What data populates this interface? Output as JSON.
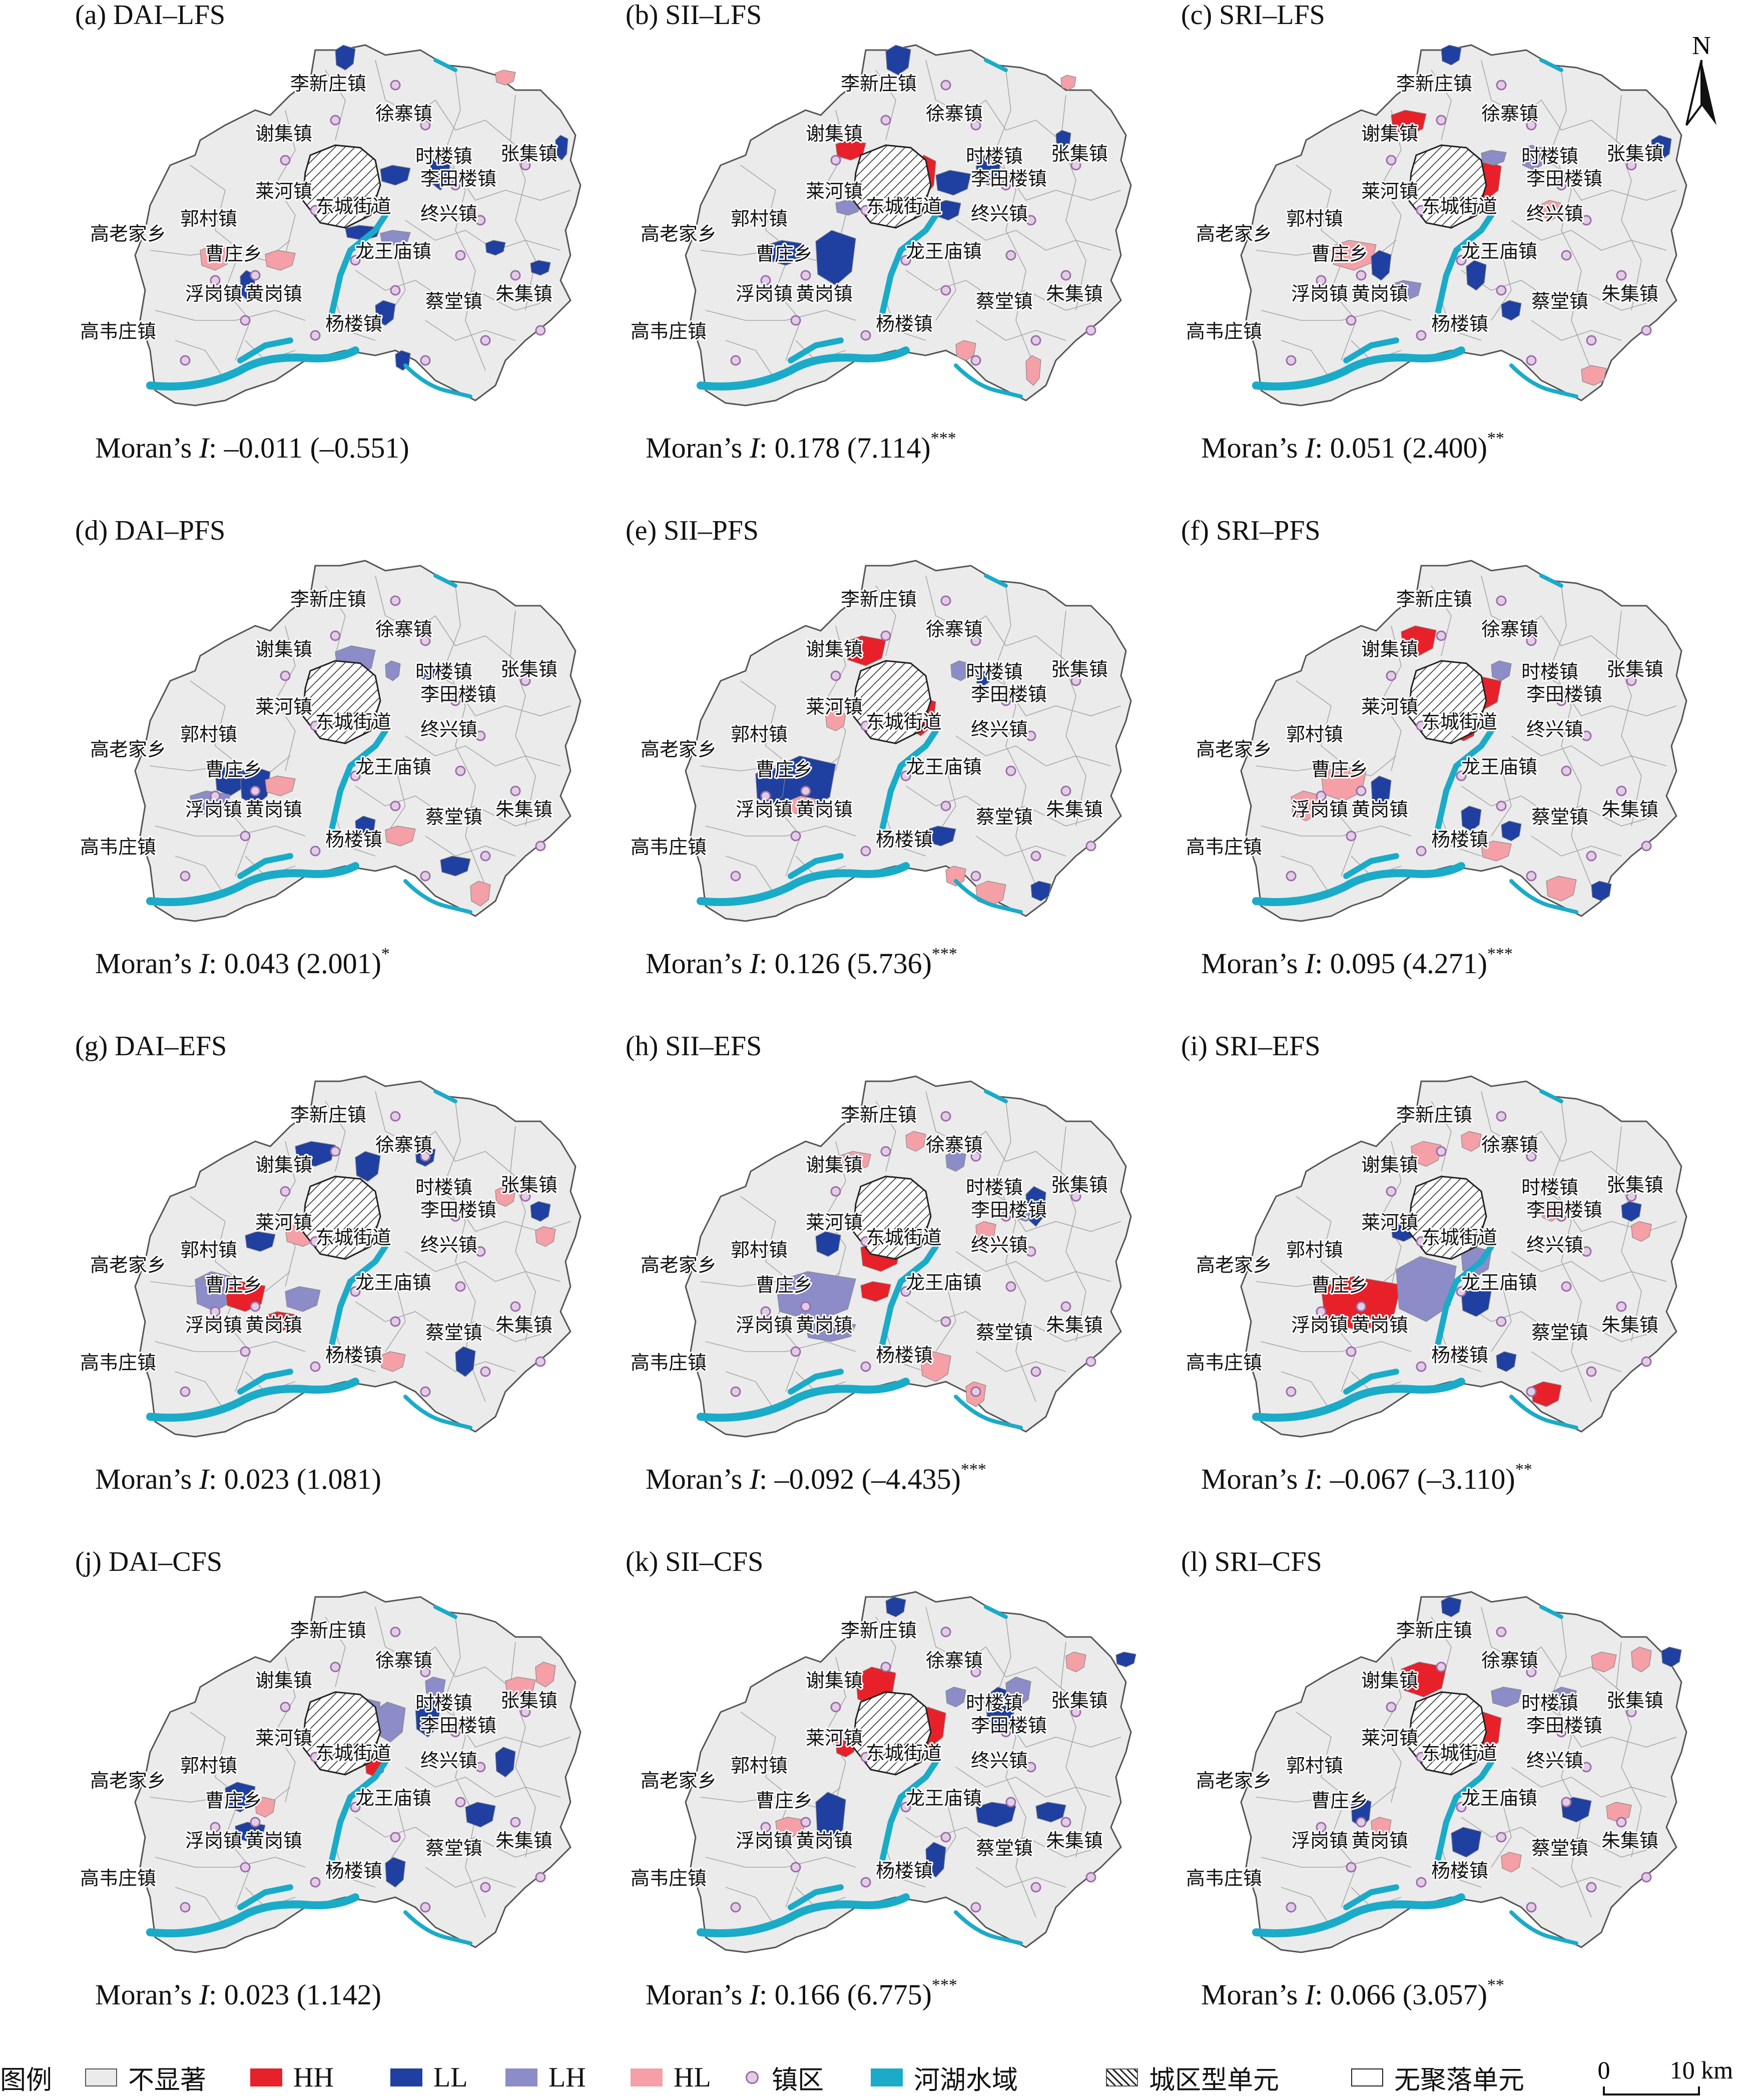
{
  "colors": {
    "not_significant": "#ebebeb",
    "HH": "#e8202a",
    "LL": "#1f40a0",
    "LH": "#8c8cc8",
    "HL": "#f4a0a6",
    "township_dot": "#e3cde6",
    "water": "#1aabc9",
    "boundary": "#666666"
  },
  "north_arrow": {
    "label": "N"
  },
  "town_names": {
    "lixinzhuang": "李新庄镇",
    "xuzhai": "徐寨镇",
    "xieji": "谢集镇",
    "shilou": "时楼镇",
    "zhangji": "张集镇",
    "litianlou": "李田楼镇",
    "laihe": "莱河镇",
    "dongcheng": "东城街道",
    "zhongxing": "终兴镇",
    "gaolaojia": "高老家乡",
    "guocun": "郭村镇",
    "caozhuang": "曹庄乡",
    "longwangmiao": "龙王庙镇",
    "fugang": "浮岗镇",
    "huanggang": "黄岗镇",
    "zhuji": "朱集镇",
    "caitang": "蔡堂镇",
    "yanglou": "杨楼镇",
    "gaoweizhuang": "高韦庄镇"
  },
  "panels": [
    {
      "title": "(a) DAI–LFS",
      "moran_prefix": "Moran’s ",
      "moran_I": "I",
      "moran_value": ": –0.011 (–0.551)",
      "moran_sig": ""
    },
    {
      "title": "(b) SII–LFS",
      "moran_prefix": "Moran’s ",
      "moran_I": "I",
      "moran_value": ": 0.178 (7.114)",
      "moran_sig": "***"
    },
    {
      "title": "(c) SRI–LFS",
      "moran_prefix": "Moran’s ",
      "moran_I": "I",
      "moran_value": ": 0.051 (2.400)",
      "moran_sig": "**"
    },
    {
      "title": "(d) DAI–PFS",
      "moran_prefix": "Moran’s ",
      "moran_I": "I",
      "moran_value": ": 0.043 (2.001)",
      "moran_sig": "*"
    },
    {
      "title": "(e) SII–PFS",
      "moran_prefix": "Moran’s ",
      "moran_I": "I",
      "moran_value": ": 0.126 (5.736)",
      "moran_sig": "***"
    },
    {
      "title": "(f) SRI–PFS",
      "moran_prefix": "Moran’s ",
      "moran_I": "I",
      "moran_value": ": 0.095 (4.271)",
      "moran_sig": "***"
    },
    {
      "title": "(g) DAI–EFS",
      "moran_prefix": "Moran’s ",
      "moran_I": "I",
      "moran_value": ": 0.023 (1.081)",
      "moran_sig": ""
    },
    {
      "title": "(h) SII–EFS",
      "moran_prefix": "Moran’s ",
      "moran_I": "I",
      "moran_value": ": –0.092 (–4.435)",
      "moran_sig": "***"
    },
    {
      "title": "(i) SRI–EFS",
      "moran_prefix": "Moran’s ",
      "moran_I": "I",
      "moran_value": ": –0.067 (–3.110)",
      "moran_sig": "**"
    },
    {
      "title": "(j) DAI–CFS",
      "moran_prefix": "Moran’s ",
      "moran_I": "I",
      "moran_value": ": 0.023 (1.142)",
      "moran_sig": ""
    },
    {
      "title": "(k) SII–CFS",
      "moran_prefix": "Moran’s ",
      "moran_I": "I",
      "moran_value": ": 0.166 (6.775)",
      "moran_sig": "***"
    },
    {
      "title": "(l) SRI–CFS",
      "moran_prefix": "Moran’s ",
      "moran_I": "I",
      "moran_value": ": 0.066 (3.057)",
      "moran_sig": "**"
    }
  ],
  "legend": {
    "title": "图例",
    "not_significant": "不显著",
    "hh": "HH",
    "ll": "LL",
    "lh": "LH",
    "hl": "HL",
    "township": "镇区",
    "water": "河湖水域",
    "urban": "城区型单元",
    "no_settlement": "无聚落单元"
  },
  "scale_bar": {
    "start": "0",
    "end": "10 km"
  }
}
